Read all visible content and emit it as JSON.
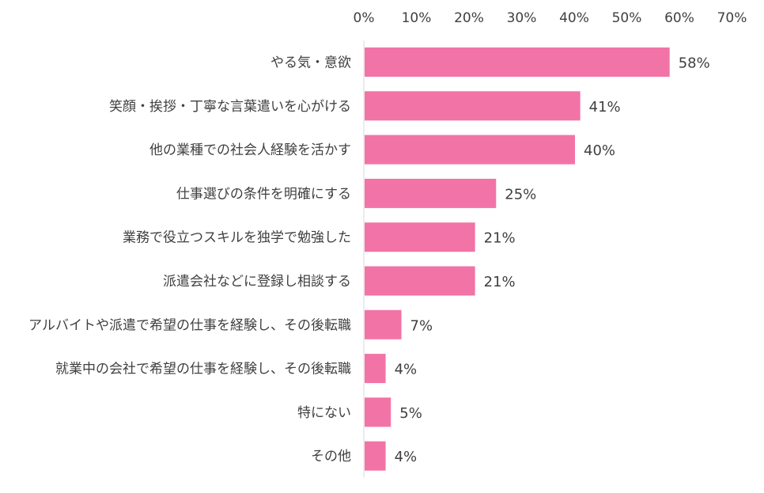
{
  "chart_data": {
    "type": "bar",
    "orientation": "horizontal",
    "categories": [
      "やる気・意欲",
      "笑顔・挨拶・丁寧な言葉遣いを心がける",
      "他の業種での社会人経験を活かす",
      "仕事選びの条件を明確にする",
      "業務で役立つスキルを独学で勉強した",
      "派遣会社などに登録し相談する",
      "アルバイトや派遣で希望の仕事を経験し、その後転職",
      "就業中の会社で希望の仕事を経験し、その後転職",
      "特にない",
      "その他"
    ],
    "values": [
      58,
      41,
      40,
      25,
      21,
      21,
      7,
      4,
      5,
      4
    ],
    "data_labels": [
      "58%",
      "41%",
      "40%",
      "25%",
      "21%",
      "21%",
      "7%",
      "4%",
      "5%",
      "4%"
    ],
    "xticks": [
      "0%",
      "10%",
      "20%",
      "30%",
      "40%",
      "50%",
      "60%",
      "70%"
    ],
    "xlim": [
      0,
      70
    ],
    "tick_axis_position": "top",
    "grid": false,
    "title": "",
    "xlabel": "",
    "ylabel": "",
    "colors": {
      "bar": "#f274a7",
      "axis": "#d9d9d9",
      "text": "#404040"
    }
  }
}
